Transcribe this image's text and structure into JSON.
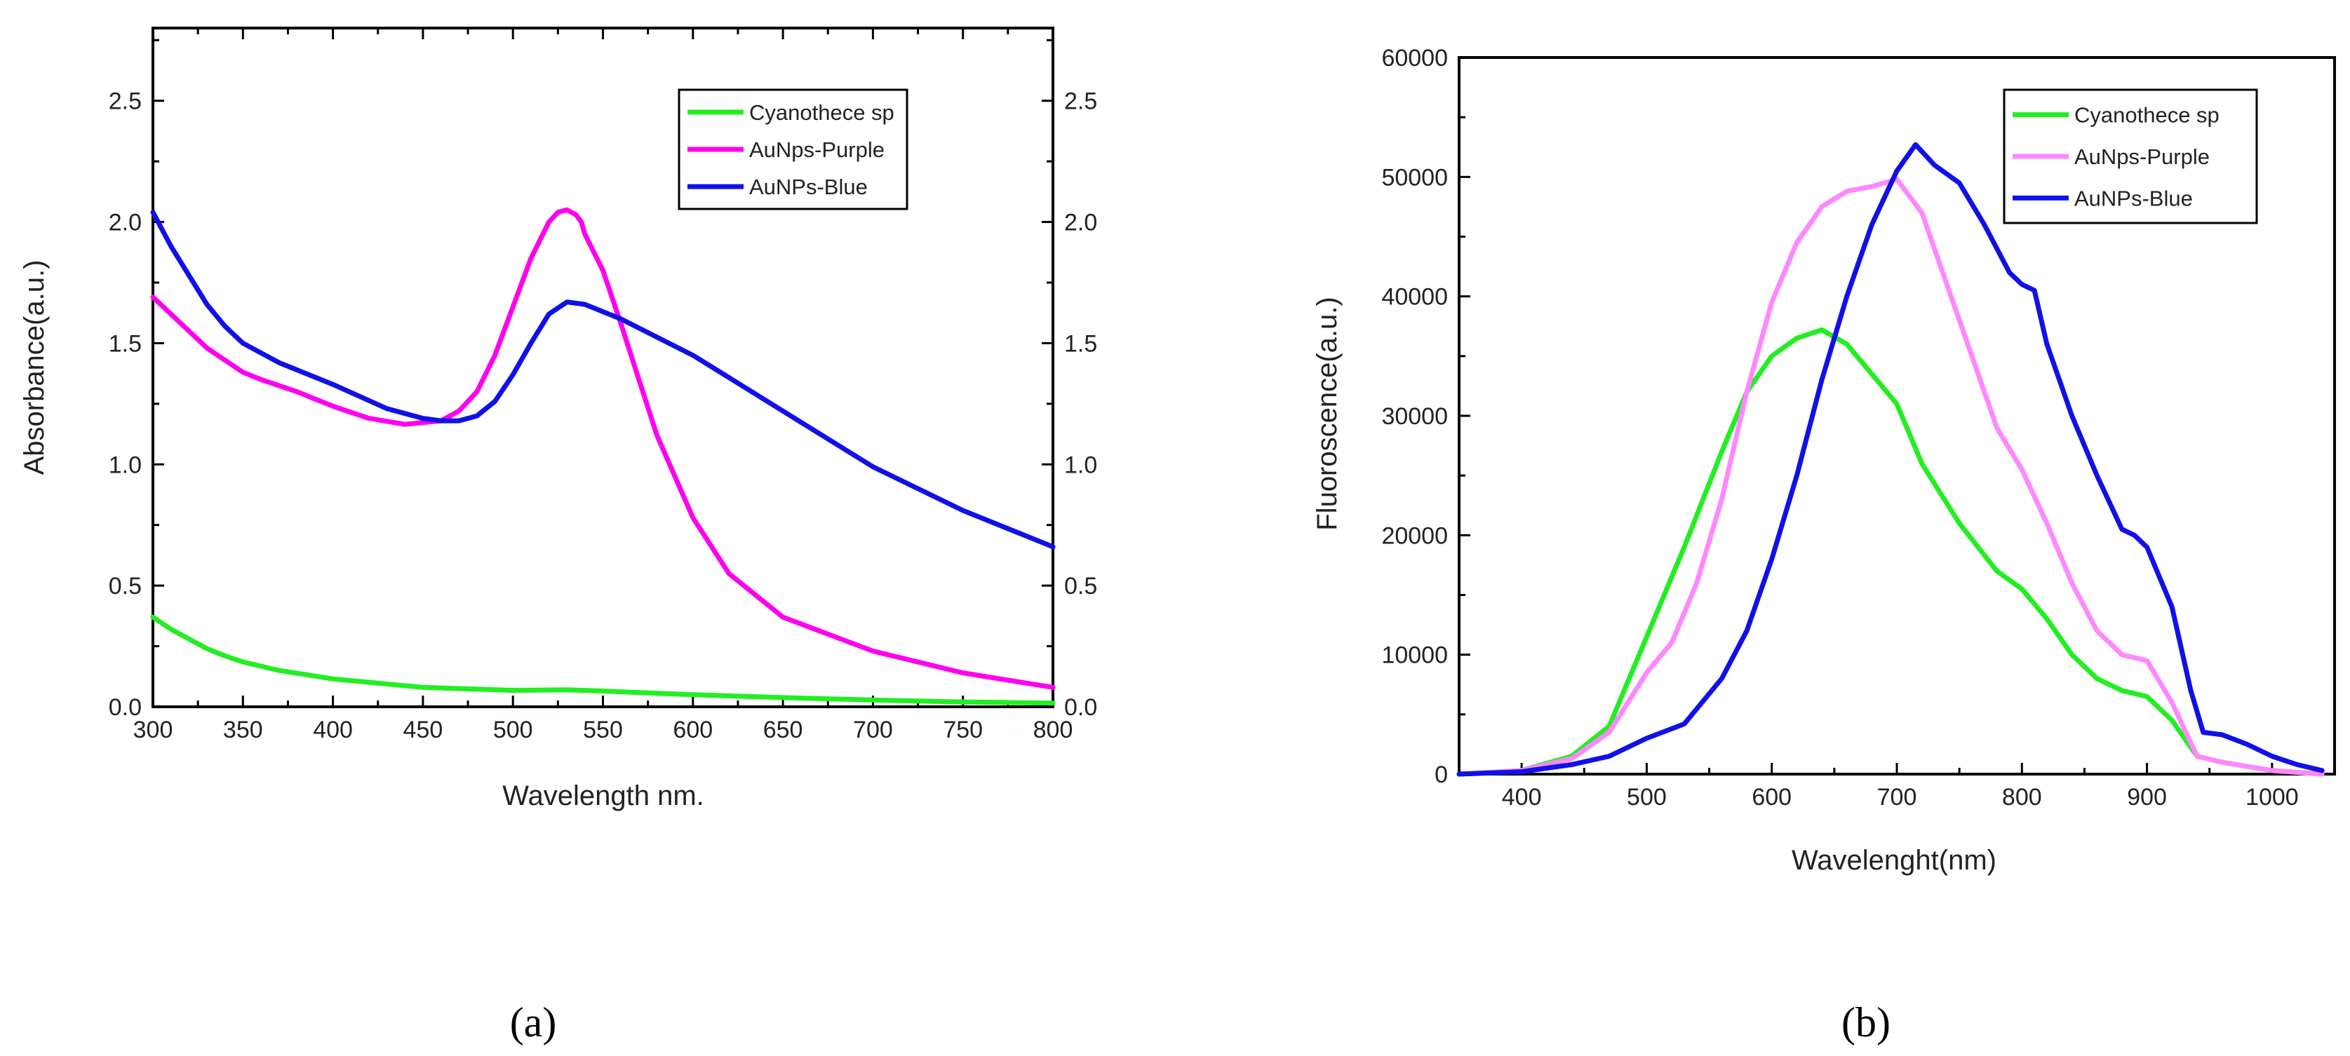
{
  "chart_data": [
    {
      "type": "line",
      "panel_label": "(a)",
      "xlabel": "Wavelength nm.",
      "ylabel": "Absorbance(a.u.)",
      "xlim": [
        300,
        800
      ],
      "ylim": [
        0,
        2.8
      ],
      "xticks": [
        300,
        350,
        400,
        450,
        500,
        550,
        600,
        650,
        700,
        750,
        800
      ],
      "xtick_labels": [
        "300",
        "350",
        "400",
        "450",
        "500",
        "550",
        "600",
        "650",
        "700",
        "750",
        "800"
      ],
      "yticks": [
        0,
        0.5,
        1.0,
        1.5,
        2.0,
        2.5
      ],
      "ytick_labels": [
        "0.0",
        "0.5",
        "1.0",
        "1.5",
        "2.0",
        "2.5"
      ],
      "right_axis_labels": true,
      "legend_position": "top-right",
      "series": [
        {
          "name": "Cyanothece sp",
          "color": "#22ee22",
          "x": [
            300,
            310,
            320,
            330,
            340,
            350,
            370,
            400,
            450,
            500,
            530,
            550,
            600,
            650,
            700,
            750,
            800
          ],
          "y": [
            0.37,
            0.32,
            0.28,
            0.24,
            0.21,
            0.185,
            0.15,
            0.115,
            0.08,
            0.068,
            0.07,
            0.065,
            0.05,
            0.038,
            0.028,
            0.02,
            0.015
          ]
        },
        {
          "name": "AuNps-Purple",
          "color": "#ff00ee",
          "x": [
            300,
            310,
            320,
            330,
            340,
            350,
            360,
            380,
            400,
            420,
            440,
            460,
            470,
            480,
            490,
            500,
            510,
            520,
            525,
            530,
            535,
            538,
            540,
            550,
            560,
            570,
            580,
            600,
            620,
            650,
            700,
            750,
            800
          ],
          "y": [
            1.69,
            1.62,
            1.55,
            1.48,
            1.43,
            1.38,
            1.35,
            1.3,
            1.24,
            1.19,
            1.165,
            1.18,
            1.22,
            1.3,
            1.45,
            1.65,
            1.85,
            2.0,
            2.04,
            2.05,
            2.03,
            2.0,
            1.95,
            1.8,
            1.58,
            1.35,
            1.12,
            0.78,
            0.55,
            0.37,
            0.23,
            0.14,
            0.08
          ]
        },
        {
          "name": "AuNPs-Blue",
          "color": "#1010e8",
          "x": [
            300,
            310,
            320,
            330,
            340,
            350,
            370,
            400,
            430,
            450,
            460,
            470,
            480,
            490,
            500,
            510,
            520,
            530,
            540,
            560,
            600,
            650,
            700,
            750,
            800
          ],
          "y": [
            2.04,
            1.9,
            1.78,
            1.66,
            1.57,
            1.5,
            1.42,
            1.33,
            1.23,
            1.19,
            1.18,
            1.18,
            1.2,
            1.26,
            1.37,
            1.5,
            1.62,
            1.67,
            1.66,
            1.6,
            1.45,
            1.22,
            0.99,
            0.81,
            0.66
          ]
        }
      ]
    },
    {
      "type": "line",
      "panel_label": "(b)",
      "xlabel": "Wavelenght(nm)",
      "ylabel": "Fluoroscence(a.u.)",
      "xlim": [
        350,
        1050
      ],
      "ylim": [
        0,
        60000
      ],
      "xticks": [
        400,
        500,
        600,
        700,
        800,
        900,
        1000
      ],
      "xtick_labels": [
        "400",
        "500",
        "600",
        "700",
        "800",
        "900",
        "1000"
      ],
      "yticks": [
        0,
        10000,
        20000,
        30000,
        40000,
        50000,
        60000
      ],
      "ytick_labels": [
        "0",
        "10000",
        "20000",
        "30000",
        "40000",
        "50000",
        "60000"
      ],
      "right_axis_labels": false,
      "legend_position": "top-right",
      "series": [
        {
          "name": "Cyanothece sp",
          "color": "#22ee22",
          "x": [
            350,
            400,
            440,
            470,
            500,
            530,
            560,
            580,
            600,
            620,
            640,
            660,
            680,
            700,
            720,
            750,
            780,
            800,
            820,
            840,
            860,
            880,
            900,
            920,
            940,
            960,
            1000,
            1040
          ],
          "y": [
            0,
            300,
            1500,
            4000,
            11500,
            19000,
            27000,
            32000,
            35000,
            36500,
            37200,
            36000,
            33500,
            31000,
            26000,
            21000,
            17000,
            15500,
            13000,
            10000,
            8000,
            7000,
            6500,
            4500,
            1500,
            1000,
            300,
            0
          ]
        },
        {
          "name": "AuNps-Purple",
          "color": "#ff88ff",
          "x": [
            350,
            400,
            440,
            470,
            500,
            520,
            540,
            560,
            580,
            600,
            620,
            640,
            660,
            680,
            700,
            720,
            740,
            760,
            780,
            800,
            820,
            840,
            860,
            880,
            900,
            920,
            940,
            960,
            1000,
            1040
          ],
          "y": [
            0,
            300,
            1300,
            3500,
            8500,
            11000,
            16000,
            23000,
            32000,
            39500,
            44500,
            47500,
            48800,
            49200,
            49800,
            47000,
            41000,
            35000,
            29000,
            25500,
            21000,
            16000,
            12000,
            10000,
            9500,
            6000,
            1500,
            1000,
            300,
            0
          ]
        },
        {
          "name": "AuNPs-Blue",
          "color": "#1010e8",
          "x": [
            350,
            400,
            440,
            470,
            500,
            530,
            560,
            580,
            600,
            620,
            640,
            660,
            680,
            700,
            715,
            730,
            750,
            770,
            790,
            800,
            810,
            820,
            840,
            860,
            880,
            890,
            900,
            920,
            935,
            945,
            960,
            980,
            1000,
            1020,
            1040
          ],
          "y": [
            0,
            200,
            800,
            1500,
            3000,
            4200,
            8000,
            12000,
            18000,
            25000,
            33000,
            40000,
            46000,
            50500,
            52700,
            51000,
            49500,
            46000,
            42000,
            41000,
            40500,
            36000,
            30000,
            25000,
            20500,
            20000,
            19000,
            14000,
            7000,
            3500,
            3300,
            2500,
            1500,
            800,
            300
          ]
        }
      ]
    }
  ]
}
